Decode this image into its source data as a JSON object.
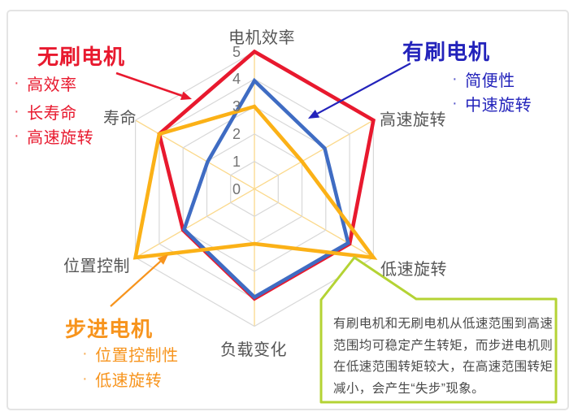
{
  "chart_data": {
    "type": "radar",
    "categories": [
      "电机效率",
      "高速旋转",
      "低速旋转",
      "负载变化",
      "位置控制",
      "寿命"
    ],
    "series": [
      {
        "name": "无刷电机",
        "key": "brushless",
        "color": "#e8192e",
        "values": [
          5,
          5,
          4,
          4,
          3,
          4
        ]
      },
      {
        "name": "有刷电机",
        "key": "brushed",
        "color": "#3f6cc3",
        "values": [
          4,
          3,
          4,
          4,
          3,
          2
        ]
      },
      {
        "name": "步进电机",
        "key": "stepper",
        "color": "#fbb117",
        "values": [
          3,
          2,
          5,
          2,
          5,
          4
        ]
      }
    ],
    "scale": {
      "min": 0,
      "max": 5,
      "ticks": [
        "5",
        "4",
        "3",
        "2",
        "1",
        "0"
      ]
    },
    "grid": {
      "ring_color": "#d8d8d8",
      "spoke_color": "#fbd98c",
      "legend_position": "none"
    }
  },
  "legend_notes": {
    "brushless": {
      "title": "无刷电机",
      "color": "#e8192e",
      "bullets": [
        "高效率",
        "长寿命",
        "高速旋转"
      ]
    },
    "brushed": {
      "title": "有刷电机",
      "color": "#2323bb",
      "bullets": [
        "简便性",
        "中速旋转"
      ]
    },
    "stepper": {
      "title": "步进电机",
      "color": "#f7941d",
      "bullets": [
        "位置控制性",
        "低速旋转"
      ]
    }
  },
  "callout": {
    "border_color": "#b4d334",
    "lines": [
      "有刷电机和无刷电机从低速范围到高速",
      "范围均可稳定产生转矩，而步进电机则",
      "在低速范围转矩较大，在高速范围转矩",
      "减小，会产生“失步”现象。"
    ]
  },
  "bullet_char": "·"
}
